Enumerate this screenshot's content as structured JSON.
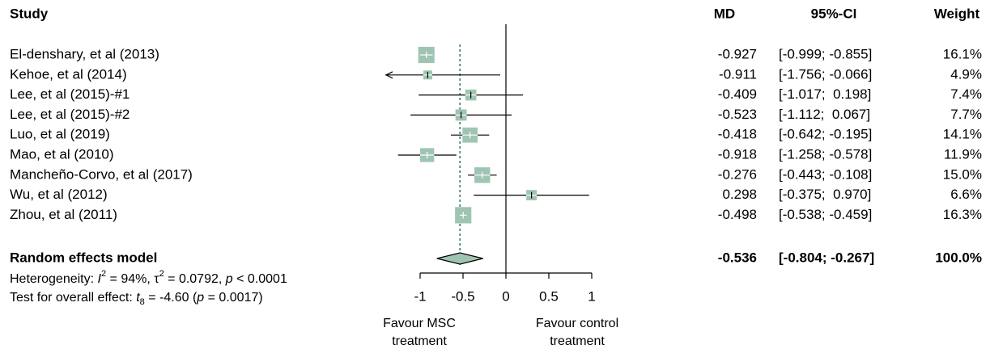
{
  "chart_data": {
    "type": "forest",
    "columns": {
      "study": "Study",
      "md": "MD",
      "ci": "95%-CI",
      "weight": "Weight"
    },
    "categories": [
      "El-denshary, et al (2013)",
      "Kehoe, et al (2014)",
      "Lee, et al (2015)-#1",
      "Lee, et al (2015)-#2",
      "Luo, et al (2019)",
      "Mao, et al (2010)",
      "Mancheño-Corvo, et al (2017)",
      "Wu, et al (2012)",
      "Zhou, et al (2011)"
    ],
    "values": [
      -0.927,
      -0.911,
      -0.409,
      -0.523,
      -0.418,
      -0.918,
      -0.276,
      0.298,
      -0.498
    ],
    "ci_low": [
      -0.999,
      -1.756,
      -1.017,
      -1.112,
      -0.642,
      -1.258,
      -0.443,
      -0.375,
      -0.538
    ],
    "ci_high": [
      -0.855,
      -0.066,
      0.198,
      0.067,
      -0.195,
      -0.578,
      -0.108,
      0.97,
      -0.459
    ],
    "ci_labels": [
      "[-0.999; -0.855]",
      "[-1.756; -0.066]",
      "[-1.017;  0.198]",
      "[-1.112;  0.067]",
      "[-0.642; -0.195]",
      "[-1.258; -0.578]",
      "[-0.443; -0.108]",
      "[-0.375;  0.970]",
      "[-0.538; -0.459]"
    ],
    "weights": [
      16.1,
      4.9,
      7.4,
      7.7,
      14.1,
      11.9,
      15.0,
      6.6,
      16.3
    ],
    "weight_labels": [
      "16.1%",
      "4.9%",
      "7.4%",
      "7.7%",
      "14.1%",
      "11.9%",
      "15.0%",
      "6.6%",
      "16.3%"
    ],
    "pooled": {
      "label": "Random effects model",
      "value": -0.536,
      "ci_low": -0.804,
      "ci_high": -0.267,
      "ci_label": "[-0.804; -0.267]",
      "weight": 100.0,
      "weight_label": "100.0%"
    },
    "heterogeneity": [
      "Heterogeneity: ",
      "I",
      "2",
      " = 94%, ",
      "τ",
      "2",
      " = 0.0792, ",
      "p",
      " < 0.0001"
    ],
    "overall_test": [
      "Test for overall effect: ",
      "t",
      "8",
      " = -4.60 (",
      "p",
      " = 0.0017)"
    ],
    "xlim": [
      -1,
      1
    ],
    "xticks": [
      -1,
      -0.5,
      0,
      0.5,
      1
    ],
    "favour_left": [
      "Favour MSC",
      "treatment"
    ],
    "favour_right": [
      "Favour control",
      "treatment"
    ],
    "color": "#9fc5b2",
    "line_color": "#2a7a66"
  }
}
